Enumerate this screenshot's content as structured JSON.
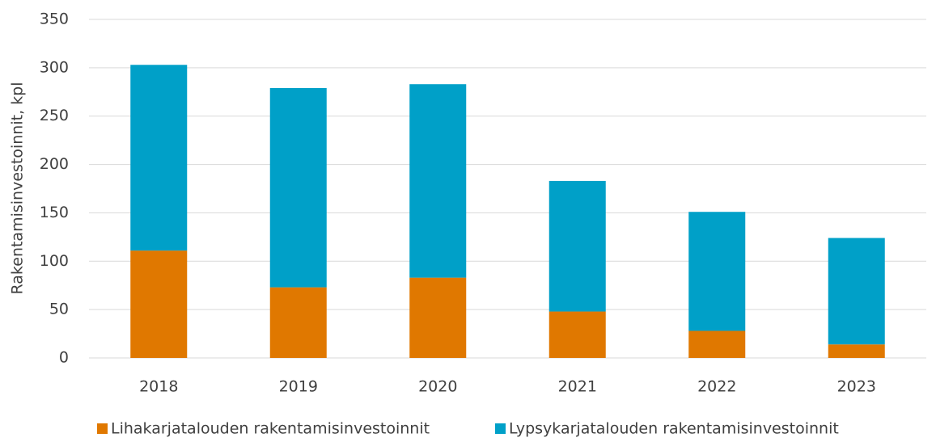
{
  "chart_data": {
    "type": "bar",
    "stacked": true,
    "y_label": "Rakentamisinvestoinnit, kpl",
    "categories": [
      "2018",
      "2019",
      "2020",
      "2021",
      "2022",
      "2023"
    ],
    "series": [
      {
        "name": "Lihakarjatalouden rakentamisinvestoinnit",
        "color": "#e07800",
        "values": [
          111,
          73,
          83,
          48,
          28,
          14
        ]
      },
      {
        "name": "Lypsykarjatalouden rakentamisinvestoinnit",
        "color": "#00a0c8",
        "values": [
          192,
          206,
          200,
          135,
          123,
          110
        ]
      }
    ],
    "ylim": [
      0,
      350
    ],
    "yticks": [
      0,
      50,
      100,
      150,
      200,
      250,
      300,
      350
    ],
    "grid": true,
    "legend": "bottom"
  }
}
